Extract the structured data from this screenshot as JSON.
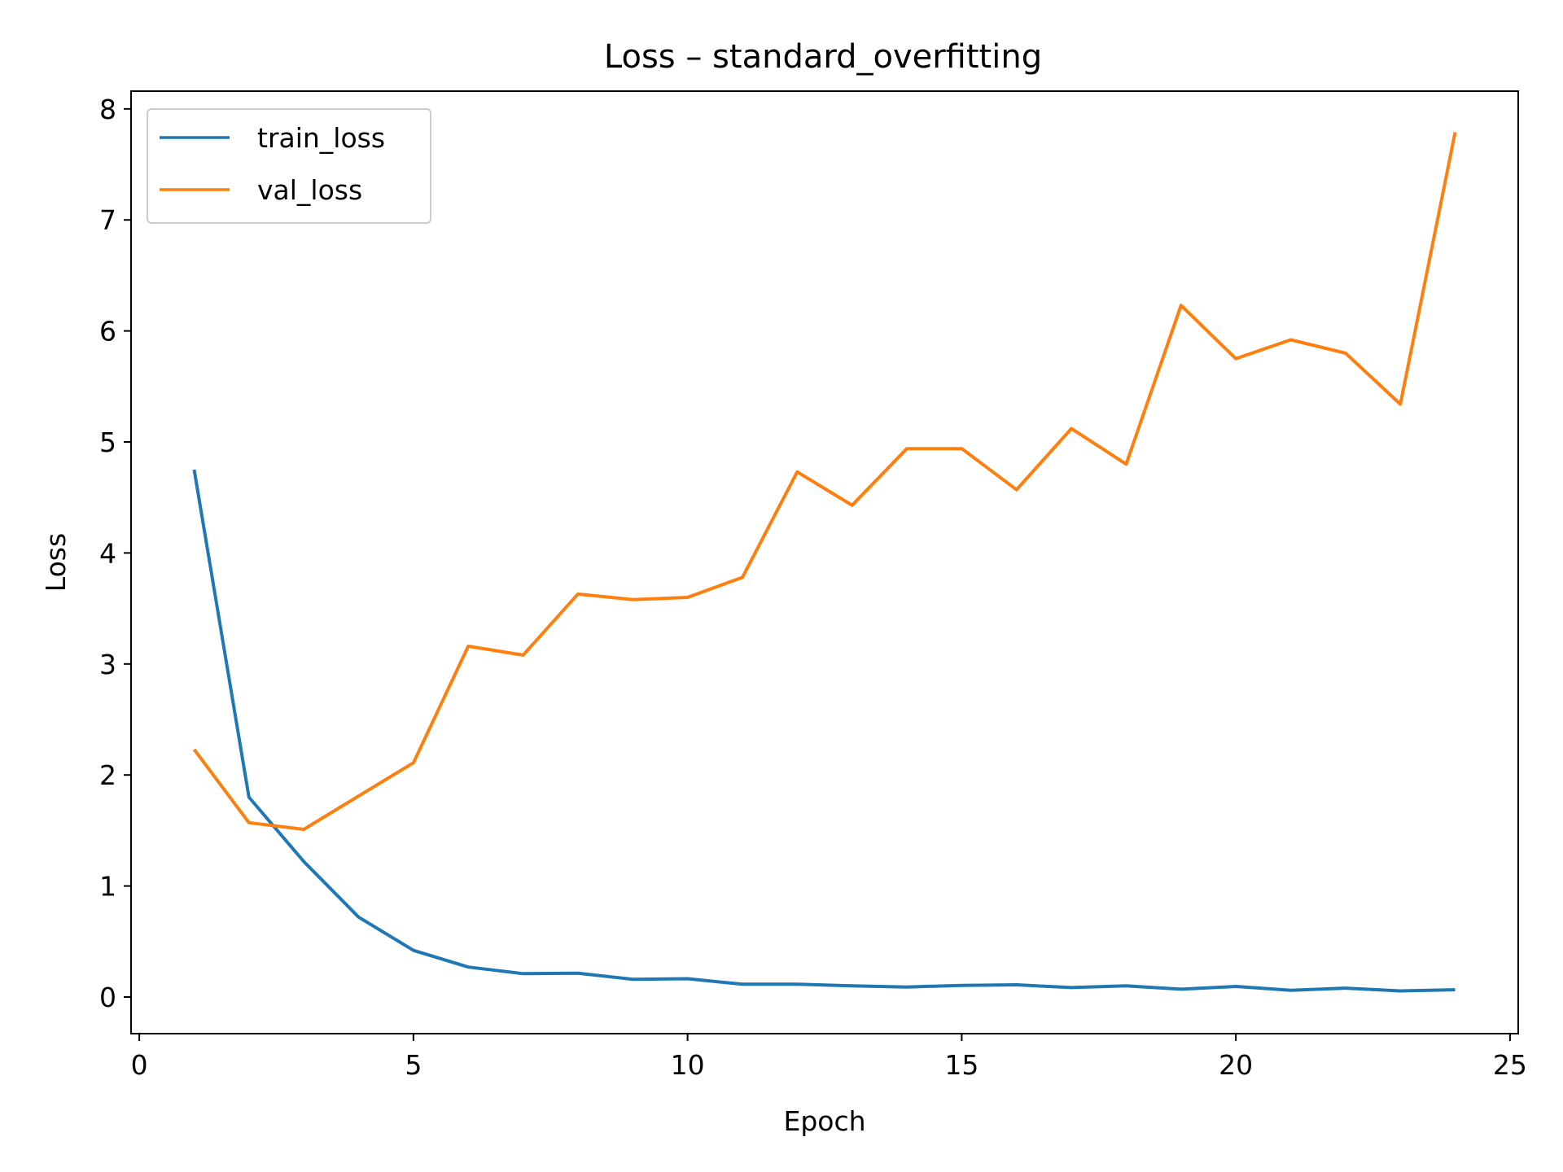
{
  "chart_data": {
    "type": "line",
    "title": "Loss – standard_overfitting",
    "xlabel": "Epoch",
    "ylabel": "Loss",
    "xlim": [
      -0.15,
      25.15
    ],
    "ylim": [
      -0.33,
      8.16
    ],
    "xticks": [
      "0",
      "5",
      "10",
      "15",
      "20",
      "25"
    ],
    "yticks": [
      "0",
      "1",
      "2",
      "3",
      "4",
      "5",
      "6",
      "7",
      "8"
    ],
    "grid": false,
    "legend_position": "upper left",
    "x": [
      1,
      2,
      3,
      4,
      5,
      6,
      7,
      8,
      9,
      10,
      11,
      12,
      13,
      14,
      15,
      16,
      17,
      18,
      19,
      20,
      21,
      22,
      23,
      24
    ],
    "series": [
      {
        "name": "train_loss",
        "color": "#1f77b4",
        "values": [
          4.75,
          1.8,
          1.22,
          0.72,
          0.42,
          0.27,
          0.21,
          0.215,
          0.16,
          0.165,
          0.115,
          0.115,
          0.1,
          0.09,
          0.105,
          0.11,
          0.085,
          0.1,
          0.07,
          0.095,
          0.06,
          0.08,
          0.055,
          0.065
        ]
      },
      {
        "name": "val_loss",
        "color": "#ff7f0e",
        "values": [
          2.23,
          1.57,
          1.51,
          1.81,
          2.11,
          3.16,
          3.08,
          3.63,
          3.58,
          3.6,
          3.78,
          4.73,
          4.43,
          4.94,
          4.94,
          4.57,
          5.12,
          4.8,
          6.23,
          5.75,
          5.92,
          5.8,
          5.34,
          7.79
        ]
      }
    ]
  }
}
